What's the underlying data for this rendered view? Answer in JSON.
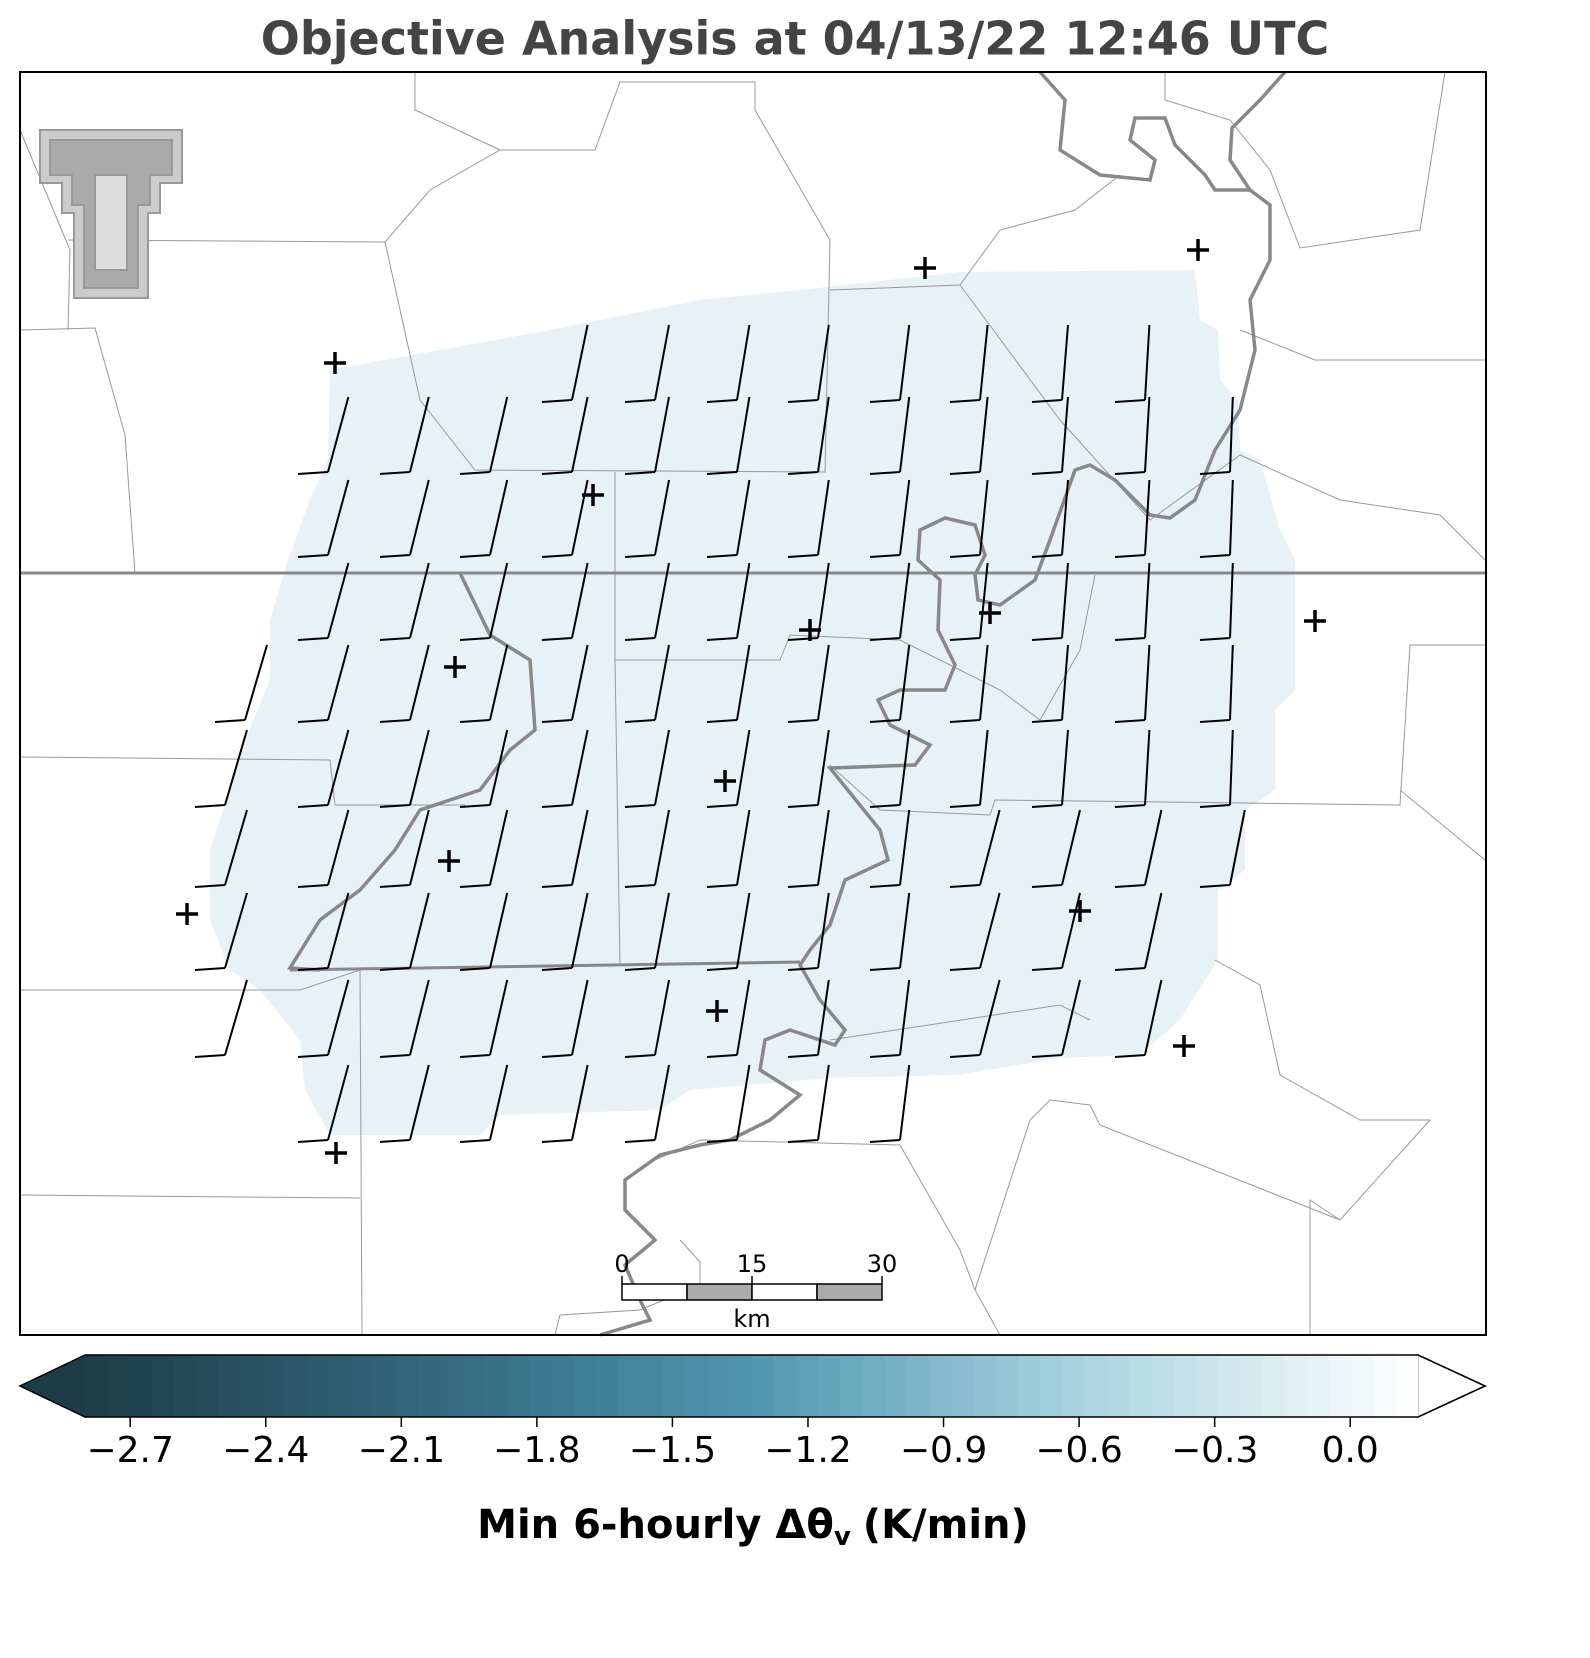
{
  "header": {
    "title": "Objective Analysis at 04/13/22 12:46 UTC"
  },
  "colorbar": {
    "clim": [
      -2.8,
      0.15
    ],
    "ticks": [
      {
        "value": -2.7,
        "label": "−2.7"
      },
      {
        "value": -2.4,
        "label": "−2.4"
      },
      {
        "value": -2.1,
        "label": "−2.1"
      },
      {
        "value": -1.8,
        "label": "−1.8"
      },
      {
        "value": -1.5,
        "label": "−1.5"
      },
      {
        "value": -1.2,
        "label": "−1.2"
      },
      {
        "value": -0.9,
        "label": "−0.9"
      },
      {
        "value": -0.6,
        "label": "−0.6"
      },
      {
        "value": -0.3,
        "label": "−0.3"
      },
      {
        "value": 0,
        "label": "0.0"
      }
    ],
    "label": "Min 6-hourly Δθ",
    "label_sub": "v",
    "label_unit": "(K/min)"
  },
  "scale_bar": {
    "range": [
      0,
      30
    ],
    "ticks": [
      0,
      15,
      30
    ],
    "unit": "km"
  }
}
